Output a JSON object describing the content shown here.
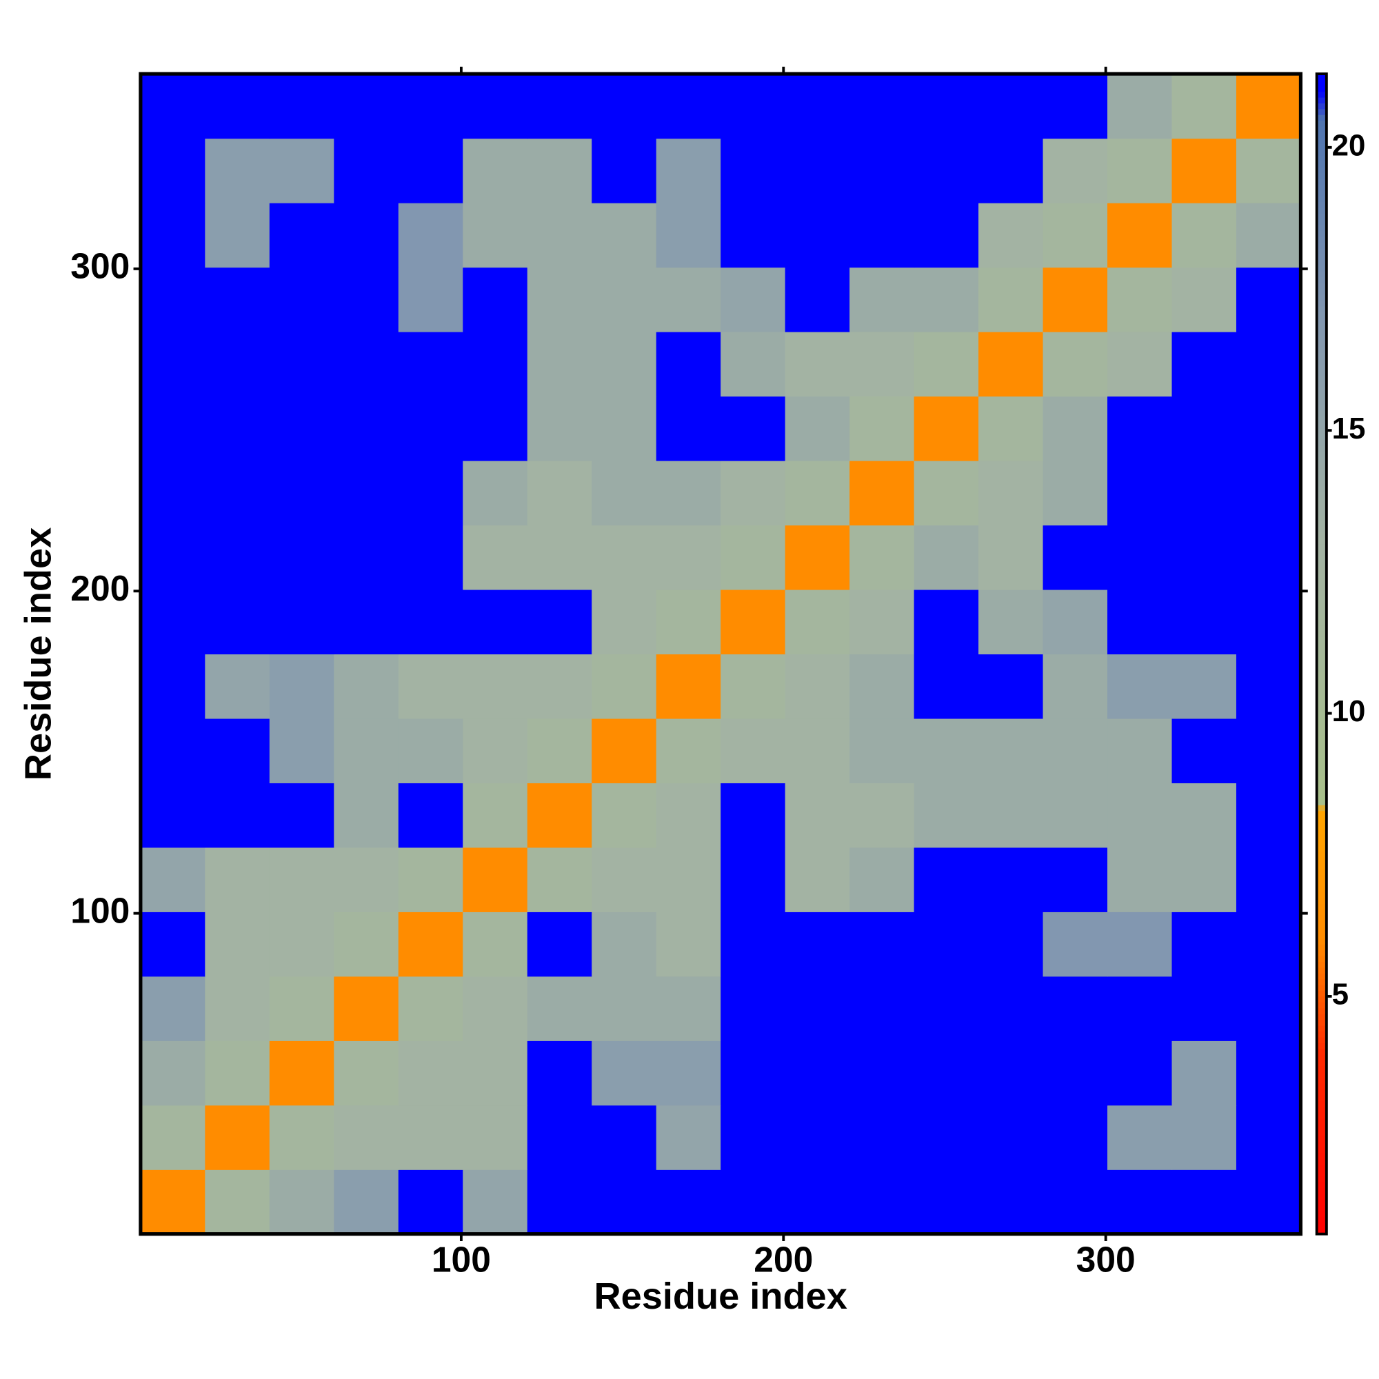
{
  "chart_data": {
    "type": "heatmap",
    "x_label": "Residue index",
    "y_label": "Residue index",
    "bins": [
      0.5,
      20.5,
      40.5,
      60.5,
      80.5,
      100.5,
      120.5,
      140.5,
      160.5,
      180.5,
      200.5,
      220.5,
      240.5,
      260.5,
      280.5,
      300.5,
      320.5,
      340.5,
      360.5
    ],
    "xlim": [
      0.5,
      360.5
    ],
    "ylim": [
      0.5,
      360.5
    ],
    "xticks": [
      100,
      200,
      300
    ],
    "yticks": [
      100,
      200,
      300
    ],
    "zlim": [
      0.8,
      21.3
    ],
    "zticks": [
      5,
      10,
      15,
      20
    ],
    "colorscale": [
      [
        0.8,
        "#ff0000"
      ],
      [
        4,
        "#ff2a00"
      ],
      [
        6,
        "#ff8c00"
      ],
      [
        8.3,
        "#ffa500"
      ],
      [
        8.4,
        "#a8c08a"
      ],
      [
        13,
        "#a3b3a3"
      ],
      [
        17,
        "#8297b0"
      ],
      [
        20.5,
        "#4f74b0"
      ],
      [
        21,
        "#0000ff"
      ],
      [
        21.3,
        "#0000ff"
      ]
    ],
    "z": [
      [
        6,
        12,
        14,
        16,
        21,
        15,
        21,
        21,
        21,
        21,
        21,
        21,
        21,
        21,
        21,
        21,
        21,
        21
      ],
      [
        12,
        6,
        12,
        13,
        13,
        13,
        21,
        21,
        15,
        21,
        21,
        21,
        21,
        21,
        21,
        16,
        16,
        21
      ],
      [
        14,
        12,
        6,
        12,
        13,
        13,
        21,
        16,
        16,
        21,
        21,
        21,
        21,
        21,
        21,
        21,
        16,
        21
      ],
      [
        16,
        13,
        12,
        6,
        12,
        13,
        14,
        14,
        14,
        21,
        21,
        21,
        21,
        21,
        21,
        21,
        21,
        21
      ],
      [
        21,
        13,
        13,
        12,
        6,
        12,
        21,
        14,
        13,
        21,
        21,
        21,
        21,
        21,
        17,
        17,
        21,
        21
      ],
      [
        15,
        13,
        13,
        13,
        12,
        6,
        12,
        13,
        13,
        21,
        13,
        14,
        21,
        21,
        21,
        14,
        14,
        21
      ],
      [
        21,
        21,
        21,
        14,
        21,
        12,
        6,
        12,
        13,
        21,
        13,
        13,
        14,
        14,
        14,
        14,
        14,
        21
      ],
      [
        21,
        21,
        16,
        14,
        14,
        13,
        12,
        6,
        12,
        13,
        13,
        14,
        14,
        14,
        14,
        14,
        21,
        21
      ],
      [
        21,
        15,
        16,
        14,
        13,
        13,
        13,
        12,
        6,
        12,
        13,
        14,
        21,
        21,
        14,
        16,
        16,
        21
      ],
      [
        21,
        21,
        21,
        21,
        21,
        21,
        21,
        13,
        12,
        6,
        12,
        13,
        21,
        14,
        15,
        21,
        21,
        21
      ],
      [
        21,
        21,
        21,
        21,
        21,
        13,
        13,
        13,
        13,
        12,
        6,
        12,
        14,
        13,
        21,
        21,
        21,
        21
      ],
      [
        21,
        21,
        21,
        21,
        21,
        14,
        13,
        14,
        14,
        13,
        12,
        6,
        12,
        13,
        14,
        21,
        21,
        21
      ],
      [
        21,
        21,
        21,
        21,
        21,
        21,
        14,
        14,
        21,
        21,
        14,
        12,
        6,
        12,
        14,
        21,
        21,
        21
      ],
      [
        21,
        21,
        21,
        21,
        21,
        21,
        14,
        14,
        21,
        14,
        13,
        13,
        12,
        6,
        12,
        13,
        21,
        21
      ],
      [
        21,
        21,
        21,
        21,
        17,
        21,
        14,
        14,
        14,
        15,
        21,
        14,
        14,
        12,
        6,
        12,
        13,
        21
      ],
      [
        21,
        16,
        21,
        21,
        17,
        14,
        14,
        14,
        16,
        21,
        21,
        21,
        21,
        13,
        12,
        6,
        12,
        14
      ],
      [
        21,
        16,
        16,
        21,
        21,
        14,
        14,
        21,
        16,
        21,
        21,
        21,
        21,
        21,
        13,
        12,
        6,
        12
      ],
      [
        21,
        21,
        21,
        21,
        21,
        21,
        21,
        21,
        21,
        21,
        21,
        21,
        21,
        21,
        21,
        14,
        12,
        6
      ]
    ]
  }
}
